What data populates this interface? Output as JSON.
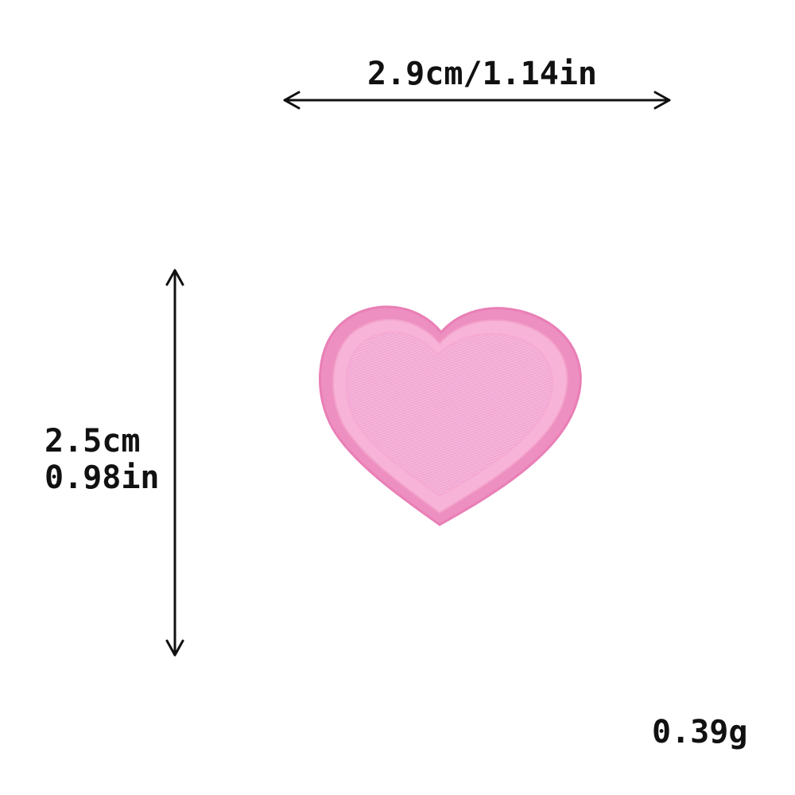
{
  "product": {
    "shape_icon": "heart-patch-icon",
    "color": "#f3a6cf",
    "border_color": "#ee86bd"
  },
  "dimensions": {
    "width_label": "2.9cm/1.14in",
    "height_cm": "2.5cm",
    "height_in": "0.98in",
    "weight": "0.39g"
  },
  "arrow_color": "#111111"
}
